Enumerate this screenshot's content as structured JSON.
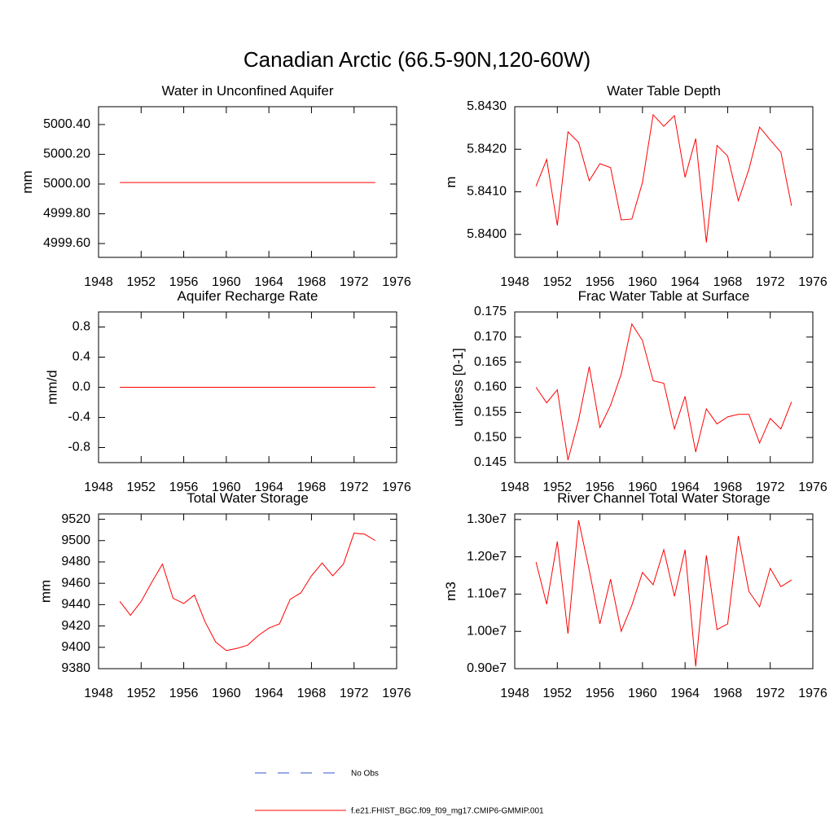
{
  "title": "Canadian Arctic (66.5-90N,120-60W)",
  "legend": [
    {
      "name": "No Obs",
      "color": "#3355cc",
      "dashed": true
    },
    {
      "name": "f.e21.FHIST_BGC.f09_f09_mg17.CMIP6-GMMIP.001",
      "color": "#ff0000",
      "dashed": false
    }
  ],
  "chart_data": [
    {
      "type": "line",
      "title": "Water in Unconfined Aquifer",
      "ylabel": "mm",
      "color": "#ff0000",
      "x": [
        1950,
        1951,
        1952,
        1953,
        1954,
        1955,
        1956,
        1957,
        1958,
        1959,
        1960,
        1961,
        1962,
        1963,
        1964,
        1965,
        1966,
        1967,
        1968,
        1969,
        1970,
        1971,
        1972,
        1973,
        1974
      ],
      "values": [
        5000.01,
        5000.01,
        5000.01,
        5000.01,
        5000.01,
        5000.01,
        5000.01,
        5000.01,
        5000.01,
        5000.01,
        5000.01,
        5000.01,
        5000.01,
        5000.01,
        5000.01,
        5000.01,
        5000.01,
        5000.01,
        5000.01,
        5000.01,
        5000.01,
        5000.01,
        5000.01,
        5000.01,
        5000.01
      ],
      "xlim": [
        1948,
        1976
      ],
      "xticks": [
        1948,
        1952,
        1956,
        1960,
        1964,
        1968,
        1972,
        1976
      ],
      "ylim": [
        4999.507,
        5000.52
      ],
      "yticks": [
        {
          "value": 4999.6,
          "label": "4999.60"
        },
        {
          "value": 4999.8,
          "label": "4999.80"
        },
        {
          "value": 5000,
          "label": "5000.00"
        },
        {
          "value": 5000.2,
          "label": "5000.20"
        },
        {
          "value": 5000.4,
          "label": "5000.40"
        }
      ]
    },
    {
      "type": "line",
      "title": "Water Table Depth",
      "ylabel": "m",
      "color": "#ff0000",
      "x": [
        1950,
        1951,
        1952,
        1953,
        1954,
        1955,
        1956,
        1957,
        1958,
        1959,
        1960,
        1961,
        1962,
        1963,
        1964,
        1965,
        1966,
        1967,
        1968,
        1969,
        1970,
        1971,
        1972,
        1973,
        1974
      ],
      "values": [
        5.84113,
        5.84176,
        5.84021,
        5.84241,
        5.84216,
        5.84126,
        5.84166,
        5.84157,
        5.84034,
        5.84036,
        5.84122,
        5.84281,
        5.84254,
        5.84279,
        5.84134,
        5.84225,
        5.83981,
        5.84209,
        5.84184,
        5.84079,
        5.84153,
        5.84252,
        5.84222,
        5.84193,
        5.84067
      ],
      "xlim": [
        1948,
        1976
      ],
      "xticks": [
        1948,
        1952,
        1956,
        1960,
        1964,
        1968,
        1972,
        1976
      ],
      "ylim": [
        5.83946,
        5.843
      ],
      "yticks": [
        {
          "value": 5.84,
          "label": "5.8400"
        },
        {
          "value": 5.841,
          "label": "5.8410"
        },
        {
          "value": 5.842,
          "label": "5.8420"
        },
        {
          "value": 5.843,
          "label": "5.8430"
        }
      ]
    },
    {
      "type": "line",
      "title": "Aquifer Recharge Rate",
      "ylabel": "mm/d",
      "color": "#ff0000",
      "x": [
        1950,
        1951,
        1952,
        1953,
        1954,
        1955,
        1956,
        1957,
        1958,
        1959,
        1960,
        1961,
        1962,
        1963,
        1964,
        1965,
        1966,
        1967,
        1968,
        1969,
        1970,
        1971,
        1972,
        1973,
        1974
      ],
      "values": [
        0,
        0,
        0,
        0,
        0,
        0,
        0,
        0,
        0,
        0,
        0,
        0,
        0,
        0,
        0,
        0,
        0,
        0,
        0,
        0,
        0,
        0,
        0,
        0,
        0
      ],
      "xlim": [
        1948,
        1976
      ],
      "xticks": [
        1948,
        1952,
        1956,
        1960,
        1964,
        1968,
        1972,
        1976
      ],
      "ylim": [
        -1,
        1
      ],
      "yticks": [
        -0.8,
        -0.4,
        {
          "value": 0,
          "label": "0.0"
        },
        0.4,
        0.8
      ]
    },
    {
      "type": "line",
      "title": "Frac Water Table at Surface",
      "ylabel": "unitless [0-1]",
      "color": "#ff0000",
      "x": [
        1950,
        1951,
        1952,
        1953,
        1954,
        1955,
        1956,
        1957,
        1958,
        1959,
        1960,
        1961,
        1962,
        1963,
        1964,
        1965,
        1966,
        1967,
        1968,
        1969,
        1970,
        1971,
        1972,
        1973,
        1974
      ],
      "values": [
        0.16,
        0.1569,
        0.1595,
        0.1455,
        0.1535,
        0.1641,
        0.152,
        0.1564,
        0.1626,
        0.1726,
        0.1693,
        0.1613,
        0.1608,
        0.1517,
        0.1582,
        0.1471,
        0.1557,
        0.1527,
        0.1541,
        0.1546,
        0.1546,
        0.1489,
        0.1538,
        0.1517,
        0.1571
      ],
      "xlim": [
        1948,
        1976
      ],
      "xticks": [
        1948,
        1952,
        1956,
        1960,
        1964,
        1968,
        1972,
        1976
      ],
      "ylim": [
        0.145,
        0.175
      ],
      "yticks": [
        0.145,
        {
          "value": 0.15,
          "label": "0.150"
        },
        0.155,
        {
          "value": 0.16,
          "label": "0.160"
        },
        0.165,
        {
          "value": 0.17,
          "label": "0.170"
        },
        0.175
      ]
    },
    {
      "type": "line",
      "title": "Total Water Storage",
      "ylabel": "mm",
      "color": "#ff0000",
      "x": [
        1950,
        1951,
        1952,
        1953,
        1954,
        1955,
        1956,
        1957,
        1958,
        1959,
        1960,
        1961,
        1962,
        1963,
        1964,
        1965,
        1966,
        1967,
        1968,
        1969,
        1970,
        1971,
        1972,
        1973,
        1974
      ],
      "values": [
        9443,
        9430,
        9443,
        9461,
        9478,
        9446,
        9441,
        9449,
        9424,
        9405,
        9397,
        9399,
        9402,
        9411,
        9418,
        9422,
        9445,
        9451,
        9467,
        9479,
        9467,
        9478,
        9507,
        9506,
        9500
      ],
      "xlim": [
        1948,
        1976
      ],
      "xticks": [
        1948,
        1952,
        1956,
        1960,
        1964,
        1968,
        1972,
        1976
      ],
      "ylim": [
        9380,
        9525
      ],
      "yticks": [
        9380,
        9400,
        9420,
        9440,
        9460,
        9480,
        9500,
        9520
      ]
    },
    {
      "type": "line",
      "title": "River Channel Total Water Storage",
      "ylabel": "m3",
      "color": "#ff0000",
      "x": [
        1950,
        1951,
        1952,
        1953,
        1954,
        1955,
        1956,
        1957,
        1958,
        1959,
        1960,
        1961,
        1962,
        1963,
        1964,
        1965,
        1966,
        1967,
        1968,
        1969,
        1970,
        1971,
        1972,
        1973,
        1974
      ],
      "values": [
        11860000,
        10730000,
        12410000,
        9940000,
        12980000,
        11640000,
        10200000,
        11400000,
        10000000,
        10700000,
        11580000,
        11250000,
        12190000,
        10940000,
        12190000,
        9060000,
        12040000,
        10050000,
        10200000,
        12560000,
        11070000,
        10660000,
        11690000,
        11200000,
        11380000
      ],
      "xlim": [
        1948,
        1976
      ],
      "xticks": [
        1948,
        1952,
        1956,
        1960,
        1964,
        1968,
        1972,
        1976
      ],
      "ylim": [
        9000000,
        13150000
      ],
      "yticks": [
        {
          "value": 9000000,
          "label": "0.90e7"
        },
        {
          "value": 10000000,
          "label": "1.00e7"
        },
        {
          "value": 11000000,
          "label": "1.10e7"
        },
        {
          "value": 12000000,
          "label": "1.20e7"
        },
        {
          "value": 13000000,
          "label": "1.30e7"
        }
      ]
    }
  ]
}
